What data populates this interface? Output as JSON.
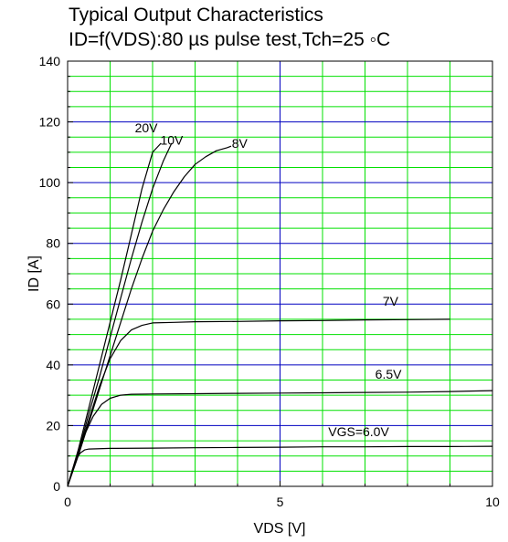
{
  "chart_data": {
    "type": "line",
    "title_line1": "Typical Output Characteristics",
    "title_line2": "ID=f(VDS):80 µs pulse test,Tch=25 ◦C",
    "xlabel": "VDS [V]",
    "ylabel": "ID [A]",
    "xlim": [
      0,
      10
    ],
    "ylim": [
      0,
      140
    ],
    "x_ticks": [
      0,
      5,
      10
    ],
    "x_tick_labels": [
      "0",
      "5",
      "10"
    ],
    "y_ticks": [
      0,
      20,
      40,
      60,
      80,
      100,
      120,
      140
    ],
    "y_tick_labels": [
      "0",
      "20",
      "40",
      "60",
      "80",
      "100",
      "120",
      "140"
    ],
    "grid": true,
    "grid_minor_color": "#00e000",
    "grid_major_color": "#0000c0",
    "line_color": "#000000",
    "series": [
      {
        "curve_label": "20V",
        "label_at": [
          1.85,
          116.5
        ],
        "points": [
          [
            0,
            0
          ],
          [
            0.25,
            12
          ],
          [
            0.5,
            26
          ],
          [
            0.75,
            40
          ],
          [
            1.0,
            54
          ],
          [
            1.25,
            68
          ],
          [
            1.5,
            83
          ],
          [
            1.75,
            98
          ],
          [
            2.0,
            110
          ],
          [
            2.2,
            113
          ]
        ]
      },
      {
        "curve_label": "10V",
        "label_at": [
          2.45,
          112.5
        ],
        "points": [
          [
            0,
            0
          ],
          [
            0.25,
            11
          ],
          [
            0.5,
            24
          ],
          [
            0.75,
            36
          ],
          [
            1.0,
            49
          ],
          [
            1.25,
            62
          ],
          [
            1.5,
            75
          ],
          [
            1.75,
            87
          ],
          [
            2.0,
            98
          ],
          [
            2.25,
            107
          ],
          [
            2.45,
            113
          ]
        ]
      },
      {
        "curve_label": "8V",
        "label_at": [
          4.05,
          111.5
        ],
        "points": [
          [
            0,
            0
          ],
          [
            0.25,
            10
          ],
          [
            0.5,
            21
          ],
          [
            0.75,
            32
          ],
          [
            1.0,
            43
          ],
          [
            1.25,
            54
          ],
          [
            1.5,
            65
          ],
          [
            1.75,
            75
          ],
          [
            2.0,
            84
          ],
          [
            2.25,
            91
          ],
          [
            2.5,
            97
          ],
          [
            2.75,
            102
          ],
          [
            3.0,
            106
          ],
          [
            3.25,
            108.5
          ],
          [
            3.5,
            110.5
          ],
          [
            3.75,
            111.5
          ],
          [
            3.85,
            112
          ]
        ]
      },
      {
        "curve_label": "7V",
        "label_at": [
          7.6,
          59.5
        ],
        "points": [
          [
            0,
            0
          ],
          [
            0.25,
            11
          ],
          [
            0.5,
            22
          ],
          [
            0.75,
            33
          ],
          [
            1.0,
            42
          ],
          [
            1.25,
            48
          ],
          [
            1.5,
            51.5
          ],
          [
            1.75,
            53
          ],
          [
            2.0,
            53.8
          ],
          [
            2.5,
            54
          ],
          [
            3.0,
            54.2
          ],
          [
            4.0,
            54.3
          ],
          [
            5.0,
            54.5
          ],
          [
            6.0,
            54.6
          ],
          [
            7.0,
            54.8
          ],
          [
            8.0,
            54.9
          ],
          [
            9.0,
            55
          ]
        ]
      },
      {
        "curve_label": "6.5V",
        "label_at": [
          7.55,
          35.5
        ],
        "points": [
          [
            0,
            0
          ],
          [
            0.2,
            9
          ],
          [
            0.4,
            17
          ],
          [
            0.6,
            23
          ],
          [
            0.8,
            27
          ],
          [
            1.0,
            29
          ],
          [
            1.25,
            30
          ],
          [
            1.5,
            30.3
          ],
          [
            2.0,
            30.4
          ],
          [
            3.0,
            30.5
          ],
          [
            4.0,
            30.6
          ],
          [
            5.0,
            30.7
          ],
          [
            6.0,
            30.8
          ],
          [
            7.0,
            30.9
          ],
          [
            8.0,
            31
          ],
          [
            9.0,
            31.2
          ],
          [
            10.0,
            31.5
          ]
        ]
      },
      {
        "curve_label": "VGS=6.0V",
        "label_at": [
          6.85,
          16.5
        ],
        "points": [
          [
            0,
            0
          ],
          [
            0.1,
            5
          ],
          [
            0.2,
            9
          ],
          [
            0.3,
            11
          ],
          [
            0.4,
            12
          ],
          [
            0.5,
            12.3
          ],
          [
            1.0,
            12.5
          ],
          [
            2.0,
            12.6
          ],
          [
            3.0,
            12.7
          ],
          [
            4.0,
            12.8
          ],
          [
            5.0,
            12.9
          ],
          [
            6.0,
            13
          ],
          [
            7.0,
            13
          ],
          [
            8.0,
            13.1
          ],
          [
            9.0,
            13.1
          ],
          [
            10.0,
            13.2
          ]
        ]
      }
    ]
  }
}
